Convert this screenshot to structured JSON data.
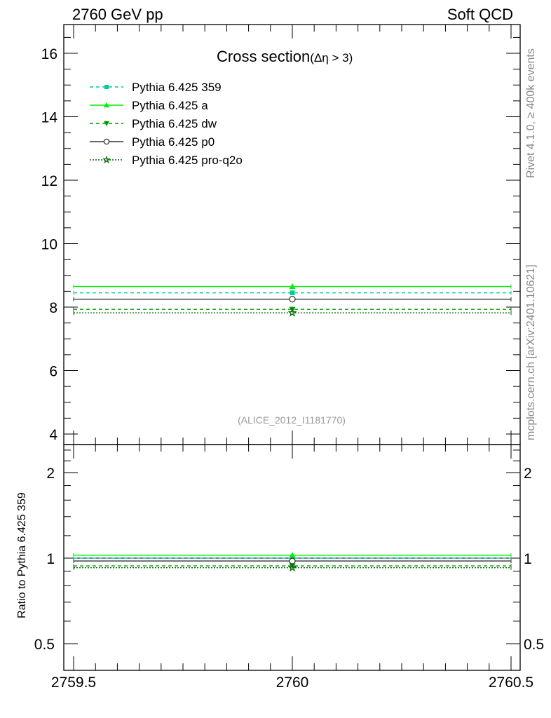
{
  "header": {
    "left": "2760 GeV pp",
    "right": "Soft QCD"
  },
  "side_labels": {
    "rivet": "Rivet 4.1.0, ≥ 400k events",
    "mcplots": "mcplots.cern.ch [arXiv:2401.10621]"
  },
  "chart_data": [
    {
      "type": "line",
      "panel": "main",
      "title": "Cross section",
      "title_sub": "(Δη > 3)",
      "annotation": "(ALICE_2012_I1181770)",
      "xlim": [
        2759.5,
        2760.5
      ],
      "ylim": [
        3.8,
        16.9
      ],
      "yticks": [
        4,
        6,
        8,
        10,
        12,
        14,
        16
      ],
      "ytick_labels": [
        "4",
        "6",
        "8",
        "10",
        "12",
        "14",
        "16"
      ],
      "legend_position": "top-left",
      "series": [
        {
          "name": "Pythia 6.425 359",
          "x": [
            2760
          ],
          "y": [
            8.45
          ],
          "xerr": [
            [
              2759.5,
              2760.5
            ]
          ],
          "color": "#00cc99",
          "dash": "5,4",
          "marker": "square"
        },
        {
          "name": "Pythia 6.425 a",
          "x": [
            2760
          ],
          "y": [
            8.65
          ],
          "xerr": [
            [
              2759.5,
              2760.5
            ]
          ],
          "color": "#00ee00",
          "dash": "",
          "marker": "triangle-up"
        },
        {
          "name": "Pythia 6.425 dw",
          "x": [
            2760
          ],
          "y": [
            7.93
          ],
          "xerr": [
            [
              2759.5,
              2760.5
            ]
          ],
          "color": "#009900",
          "dash": "5,4",
          "marker": "triangle-down"
        },
        {
          "name": "Pythia 6.425 p0",
          "x": [
            2760
          ],
          "y": [
            8.25
          ],
          "xerr": [
            [
              2759.5,
              2760.5
            ]
          ],
          "color": "#333333",
          "dash": "",
          "marker": "circle-open"
        },
        {
          "name": "Pythia 6.425 pro-q2o",
          "x": [
            2760
          ],
          "y": [
            7.82
          ],
          "xerr": [
            [
              2759.5,
              2760.5
            ]
          ],
          "color": "#006600",
          "dash": "2,2",
          "marker": "star-open"
        }
      ]
    },
    {
      "type": "line",
      "panel": "ratio",
      "ylabel": "Ratio to Pythia 6.425 359",
      "yscale": "log",
      "xlim": [
        2759.5,
        2760.5
      ],
      "ylim": [
        0.41,
        2.5
      ],
      "yticks": [
        0.5,
        1,
        2
      ],
      "ytick_labels": [
        "0.5",
        "1",
        "2"
      ],
      "xticks": [
        2759.5,
        2760,
        2760.5
      ],
      "xtick_labels": [
        "2759.5",
        "2760",
        "2760.5"
      ],
      "series": [
        {
          "name": "Pythia 6.425 359",
          "x": [
            2760
          ],
          "y": [
            1.0
          ],
          "color": "#00cc99",
          "dash": "5,4",
          "marker": "square"
        },
        {
          "name": "Pythia 6.425 a",
          "x": [
            2760
          ],
          "y": [
            1.024
          ],
          "color": "#00ee00",
          "dash": "",
          "marker": "triangle-up"
        },
        {
          "name": "Pythia 6.425 dw",
          "x": [
            2760
          ],
          "y": [
            0.939
          ],
          "color": "#009900",
          "dash": "5,4",
          "marker": "triangle-down"
        },
        {
          "name": "Pythia 6.425 p0",
          "x": [
            2760
          ],
          "y": [
            0.977
          ],
          "color": "#333333",
          "dash": "",
          "marker": "circle-open"
        },
        {
          "name": "Pythia 6.425 pro-q2o",
          "x": [
            2760
          ],
          "y": [
            0.925
          ],
          "color": "#006600",
          "dash": "2,2",
          "marker": "star-open"
        }
      ]
    }
  ]
}
